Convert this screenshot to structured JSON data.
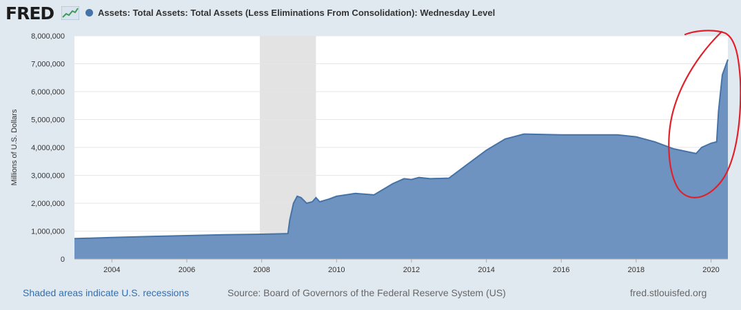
{
  "header": {
    "logo_text": "FRED",
    "logo_icon": "line-graph-icon",
    "series_title": "Assets: Total Assets: Total Assets (Less Eliminations From Consolidation): Wednesday Level"
  },
  "colors": {
    "series_fill": "#6f93c0",
    "series_line": "#4572a7",
    "recession_shade": "#e3e3e3",
    "annotation": "#e0202a",
    "link": "#2e6fb6"
  },
  "chart_data": {
    "type": "area",
    "title": "Assets: Total Assets: Total Assets (Less Eliminations From Consolidation): Wednesday Level",
    "xlabel": "",
    "ylabel": "Millions of U.S. Dollars",
    "xlim": [
      2003.0,
      2020.45
    ],
    "ylim": [
      0,
      8000000
    ],
    "x_ticks": [
      "2004",
      "2006",
      "2008",
      "2010",
      "2012",
      "2014",
      "2016",
      "2018",
      "2020"
    ],
    "y_ticks": [
      "0",
      "1,000,000",
      "2,000,000",
      "3,000,000",
      "4,000,000",
      "5,000,000",
      "6,000,000",
      "7,000,000",
      "8,000,000"
    ],
    "grid": true,
    "recession_shading": [
      {
        "start": 2007.95,
        "end": 2009.45
      }
    ],
    "series": [
      {
        "points": [
          [
            2003.0,
            730000
          ],
          [
            2004.0,
            770000
          ],
          [
            2005.0,
            810000
          ],
          [
            2006.0,
            840000
          ],
          [
            2007.0,
            870000
          ],
          [
            2008.0,
            890000
          ],
          [
            2008.7,
            910000
          ],
          [
            2008.75,
            1400000
          ],
          [
            2008.85,
            2000000
          ],
          [
            2008.95,
            2250000
          ],
          [
            2009.05,
            2200000
          ],
          [
            2009.2,
            2000000
          ],
          [
            2009.35,
            2050000
          ],
          [
            2009.45,
            2200000
          ],
          [
            2009.55,
            2050000
          ],
          [
            2009.8,
            2150000
          ],
          [
            2010.0,
            2250000
          ],
          [
            2010.5,
            2350000
          ],
          [
            2011.0,
            2300000
          ],
          [
            2011.5,
            2700000
          ],
          [
            2011.8,
            2880000
          ],
          [
            2012.0,
            2850000
          ],
          [
            2012.2,
            2920000
          ],
          [
            2012.5,
            2880000
          ],
          [
            2013.0,
            2900000
          ],
          [
            2013.5,
            3400000
          ],
          [
            2014.0,
            3900000
          ],
          [
            2014.5,
            4300000
          ],
          [
            2015.0,
            4480000
          ],
          [
            2016.0,
            4450000
          ],
          [
            2017.0,
            4450000
          ],
          [
            2017.5,
            4450000
          ],
          [
            2018.0,
            4380000
          ],
          [
            2018.5,
            4200000
          ],
          [
            2019.0,
            3950000
          ],
          [
            2019.6,
            3780000
          ],
          [
            2019.75,
            4000000
          ],
          [
            2020.0,
            4150000
          ],
          [
            2020.15,
            4200000
          ],
          [
            2020.2,
            5300000
          ],
          [
            2020.3,
            6600000
          ],
          [
            2020.45,
            7150000
          ]
        ]
      }
    ]
  },
  "footer": {
    "recession_note": "Shaded areas indicate U.S. recessions",
    "source": "Source: Board of Governors of the Federal Reserve System (US)",
    "site": "fred.stlouisfed.org"
  }
}
